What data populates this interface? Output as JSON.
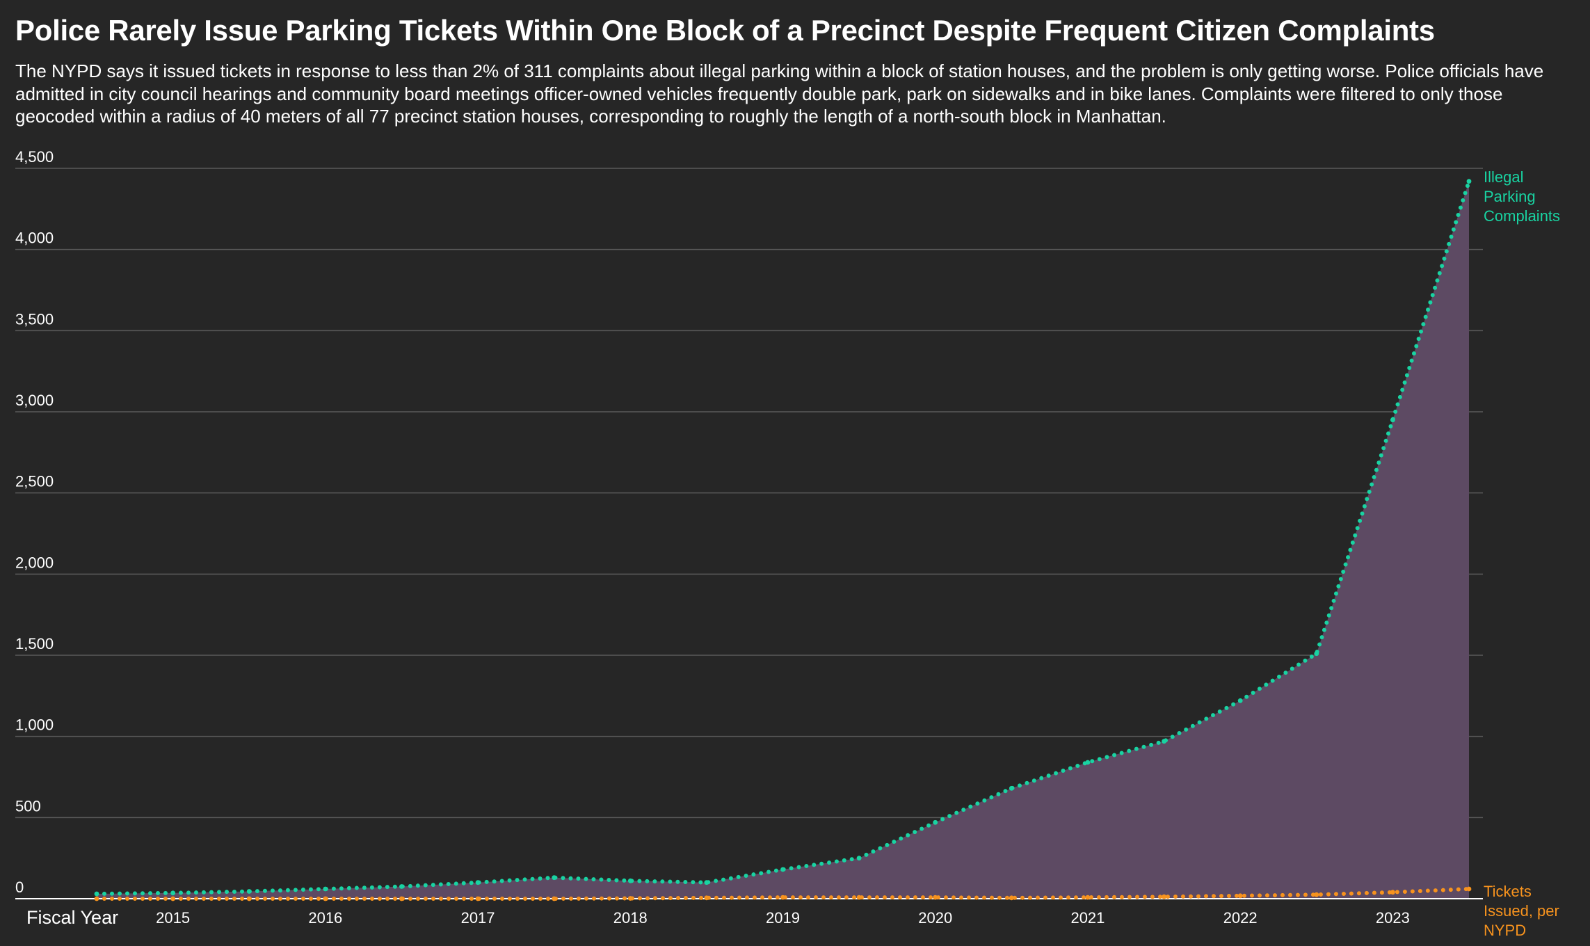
{
  "chart_data": {
    "type": "area",
    "title": "Police Rarely Issue Parking Tickets Within One Block of a Precinct Despite Frequent Citizen Complaints",
    "subtitle": "The NYPD says it issued tickets in response to less than 2% of 311 complaints about illegal parking within a block of station houses, and the problem is only getting worse. Police officials have admitted in city council hearings and community board meetings officer-owned vehicles frequently double park, park on sidewalks and in bike lanes. Complaints were filtered to only those geocoded within a radius of 40 meters of all 77 precinct station houses, corresponding to roughly the length of a north-south block in Manhattan.",
    "xlabel": "Fiscal Year",
    "ylabel": "",
    "x_tick_labels": [
      "2015",
      "2016",
      "2017",
      "2018",
      "2019",
      "2020",
      "2021",
      "2022",
      "2023"
    ],
    "y_ticks": [
      0,
      500,
      1000,
      1500,
      2000,
      2500,
      3000,
      3500,
      4000,
      4500
    ],
    "y_tick_labels": [
      "0",
      "500",
      "1,000",
      "1,500",
      "2,000",
      "2,500",
      "3,000",
      "3,500",
      "4,000",
      "4,500"
    ],
    "xlim": [
      2014.35,
      2023.5
    ],
    "ylim": [
      0,
      4500
    ],
    "grid": true,
    "legend": "direct labels at right end of each series",
    "series": [
      {
        "name": "Illegal Parking Complaints",
        "label_lines": [
          "Illegal",
          "Parking",
          "Complaints"
        ],
        "color": "#19d3a2",
        "fill": "#5d4a63",
        "x": [
          2014.5,
          2015.0,
          2015.5,
          2016.0,
          2016.5,
          2017.0,
          2017.5,
          2018.0,
          2018.5,
          2019.0,
          2019.5,
          2020.0,
          2020.5,
          2021.0,
          2021.5,
          2022.0,
          2022.5,
          2023.0,
          2023.5
        ],
        "values": [
          30,
          35,
          45,
          60,
          75,
          100,
          130,
          110,
          100,
          180,
          250,
          470,
          680,
          840,
          970,
          1220,
          1510,
          2950,
          4420
        ]
      },
      {
        "name": "Tickets Issued, per NYPD",
        "label_lines": [
          "Tickets",
          "Issued, per",
          "NYPD"
        ],
        "color": "#f7931e",
        "x": [
          2014.5,
          2015.0,
          2015.5,
          2016.0,
          2016.5,
          2017.0,
          2017.5,
          2018.0,
          2018.5,
          2019.0,
          2019.5,
          2020.0,
          2020.5,
          2021.0,
          2021.5,
          2022.0,
          2022.5,
          2023.0,
          2023.5
        ],
        "values": [
          0,
          0,
          0,
          0,
          0,
          0,
          0,
          2,
          5,
          8,
          8,
          8,
          5,
          8,
          12,
          18,
          25,
          40,
          60
        ]
      }
    ],
    "colors": {
      "background": "#262626",
      "grid": "#5a5a5a",
      "baseline": "#ffffff"
    }
  }
}
